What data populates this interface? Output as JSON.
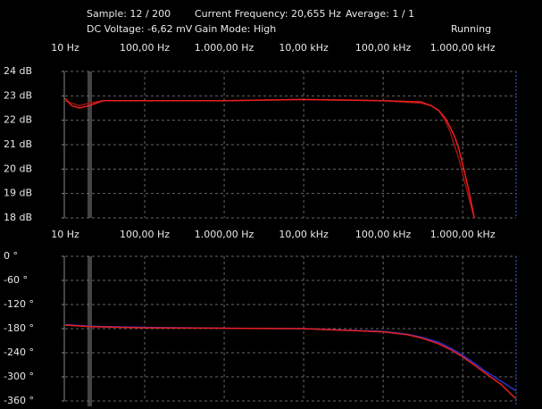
{
  "status": {
    "sample": "Sample: 12 / 200",
    "frequency": "Current Frequency: 20,655 Hz",
    "average": "Average: 1 / 1",
    "dc_voltage": "DC Voltage: -6,62 mV",
    "gain_mode": "Gain Mode: High",
    "state": "Running"
  },
  "chart_data": [
    {
      "type": "line",
      "xscale": "log",
      "grid": true,
      "x": [
        10,
        12,
        15,
        20,
        30,
        50,
        100,
        1000,
        10000,
        100000,
        300000,
        400000,
        500000,
        600000,
        700000,
        800000,
        900000,
        1000000,
        1200000,
        1400000
      ],
      "series": [
        {
          "color": "#a01010",
          "values": [
            22.8,
            22.7,
            22.6,
            22.7,
            22.8,
            22.8,
            22.8,
            22.8,
            22.85,
            22.8,
            22.7,
            22.6,
            22.4,
            22.0,
            21.5,
            20.9,
            20.4,
            19.8,
            18.8,
            18.0
          ]
        },
        {
          "color": "#e82020",
          "values": [
            22.9,
            22.6,
            22.5,
            22.6,
            22.8,
            22.8,
            22.8,
            22.8,
            22.85,
            22.8,
            22.75,
            22.6,
            22.4,
            22.1,
            21.7,
            21.3,
            20.8,
            20.2,
            19.1,
            18.0
          ]
        }
      ],
      "xlim": [
        10,
        4700000
      ],
      "xticks": [
        {
          "value": 10,
          "label": "10 Hz"
        },
        {
          "value": 100,
          "label": "100,00 Hz"
        },
        {
          "value": 1000,
          "label": "1.000,00 Hz"
        },
        {
          "value": 10000,
          "label": "10,00 kHz"
        },
        {
          "value": 100000,
          "label": "100,00 kHz"
        },
        {
          "value": 1000000,
          "label": "1.000,00 kHz"
        }
      ],
      "ylim": [
        18,
        24
      ],
      "yticks": [
        {
          "value": 18,
          "label": "18 dB"
        },
        {
          "value": 19,
          "label": "19 dB"
        },
        {
          "value": 20,
          "label": "20 dB"
        },
        {
          "value": 21,
          "label": "21 dB"
        },
        {
          "value": 22,
          "label": "22 dB"
        },
        {
          "value": 23,
          "label": "23 dB"
        },
        {
          "value": 24,
          "label": "24 dB"
        }
      ]
    },
    {
      "type": "line",
      "xscale": "log",
      "grid": true,
      "x": [
        10,
        20,
        100,
        1000,
        10000,
        100000,
        200000,
        300000,
        500000,
        700000,
        1000000,
        1500000,
        2000000,
        3000000,
        4700000
      ],
      "series": [
        {
          "color": "#3030c8",
          "values": [
            -170,
            -174,
            -177,
            -179,
            -180,
            -187,
            -194,
            -201,
            -214,
            -228,
            -246,
            -270,
            -288,
            -310,
            -335
          ]
        },
        {
          "color": "#e82020",
          "values": [
            -171,
            -175,
            -178,
            -179,
            -180,
            -188,
            -195,
            -203,
            -218,
            -232,
            -250,
            -275,
            -293,
            -318,
            -355
          ]
        }
      ],
      "xlim": [
        10,
        4700000
      ],
      "xticks": [
        {
          "value": 10,
          "label": "10 Hz"
        },
        {
          "value": 100,
          "label": "100,00 Hz"
        },
        {
          "value": 1000,
          "label": "1.000,00 Hz"
        },
        {
          "value": 10000,
          "label": "10,00 kHz"
        },
        {
          "value": 100000,
          "label": "100,00 kHz"
        },
        {
          "value": 1000000,
          "label": "1.000,00 kHz"
        }
      ],
      "ylim": [
        -360,
        0
      ],
      "yticks": [
        {
          "value": -360,
          "label": "-360 °"
        },
        {
          "value": -300,
          "label": "-300 °"
        },
        {
          "value": -240,
          "label": "-240 °"
        },
        {
          "value": -180,
          "label": "-180 °"
        },
        {
          "value": -120,
          "label": "-120 °"
        },
        {
          "value": -60,
          "label": "-60 °"
        },
        {
          "value": 0,
          "label": "0 °"
        }
      ]
    }
  ]
}
